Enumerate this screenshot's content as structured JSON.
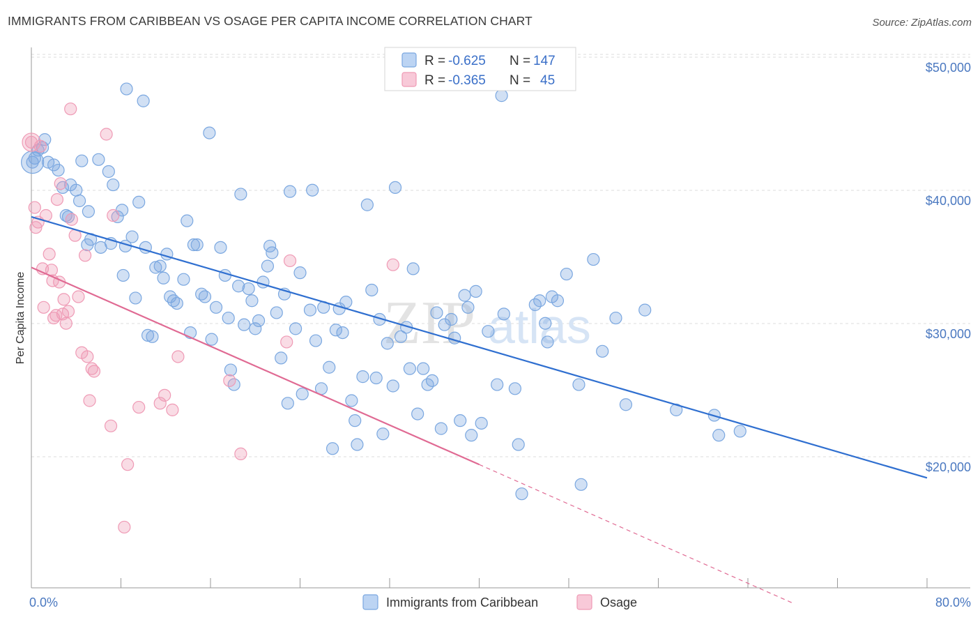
{
  "header": {
    "title": "IMMIGRANTS FROM CARIBBEAN VS OSAGE PER CAPITA INCOME CORRELATION CHART",
    "source": "Source: ZipAtlas.com"
  },
  "watermark": {
    "zip": "ZIP",
    "atlas": "atlas"
  },
  "colors": {
    "blue": "#7aa7e0",
    "blue_line": "#2f6fd0",
    "pink": "#ef9ab5",
    "pink_line": "#e06a93",
    "axis_label": "#4a78c0",
    "grid": "#dcdcdc"
  },
  "legend": {
    "rows": [
      {
        "r_label": "R =",
        "r_value": "-0.625",
        "n_label": "N =",
        "n_value": "147"
      },
      {
        "r_label": "R =",
        "r_value": "-0.365",
        "n_label": "N =",
        "n_value": "45"
      }
    ]
  },
  "chart_data": {
    "type": "scatter",
    "title": "IMMIGRANTS FROM CARIBBEAN VS OSAGE PER CAPITA INCOME CORRELATION CHART",
    "xlabel": "",
    "ylabel": "Per Capita Income",
    "xlim": [
      0,
      80
    ],
    "ylim": [
      10000,
      52000
    ],
    "x_tick_labels": [
      "0.0%",
      "80.0%"
    ],
    "y_ticks": [
      20000,
      30000,
      40000,
      50000
    ],
    "y_tick_labels": [
      "$20,000",
      "$30,000",
      "$40,000",
      "$50,000"
    ],
    "grid": true,
    "legend_position": "top-center",
    "series": [
      {
        "name": "Immigrants from Caribbean",
        "color": "#7aa7e0",
        "r": -0.625,
        "n": 147,
        "trend": {
          "x": [
            0,
            80
          ],
          "y": [
            38800,
            19200
          ],
          "style": "solid"
        },
        "points": [
          [
            0.1,
            42900
          ],
          [
            0.6,
            43800
          ],
          [
            1.0,
            44000
          ],
          [
            1.2,
            44600
          ],
          [
            1.5,
            42900
          ],
          [
            2.0,
            42700
          ],
          [
            2.4,
            42300
          ],
          [
            2.8,
            41000
          ],
          [
            3.1,
            38900
          ],
          [
            3.3,
            38800
          ],
          [
            3.5,
            41200
          ],
          [
            4.0,
            40800
          ],
          [
            4.3,
            40000
          ],
          [
            4.5,
            43000
          ],
          [
            5.1,
            39200
          ],
          [
            5.3,
            37100
          ],
          [
            5.0,
            36700
          ],
          [
            6.0,
            43100
          ],
          [
            6.2,
            36500
          ],
          [
            6.9,
            42200
          ],
          [
            7.1,
            36800
          ],
          [
            7.3,
            41200
          ],
          [
            7.7,
            38800
          ],
          [
            8.1,
            39300
          ],
          [
            8.2,
            34400
          ],
          [
            8.4,
            36600
          ],
          [
            8.5,
            48400
          ],
          [
            9.0,
            37300
          ],
          [
            9.3,
            32700
          ],
          [
            9.6,
            39900
          ],
          [
            10.0,
            47500
          ],
          [
            10.2,
            36500
          ],
          [
            10.4,
            29900
          ],
          [
            10.8,
            29800
          ],
          [
            11.1,
            35000
          ],
          [
            11.5,
            35100
          ],
          [
            11.8,
            34200
          ],
          [
            12.1,
            36000
          ],
          [
            12.4,
            32800
          ],
          [
            12.7,
            32500
          ],
          [
            13.0,
            32300
          ],
          [
            13.6,
            34100
          ],
          [
            13.9,
            38500
          ],
          [
            14.2,
            30100
          ],
          [
            14.5,
            36700
          ],
          [
            14.8,
            36700
          ],
          [
            15.2,
            33000
          ],
          [
            15.5,
            32800
          ],
          [
            15.9,
            45100
          ],
          [
            16.1,
            29600
          ],
          [
            16.5,
            32000
          ],
          [
            16.9,
            36500
          ],
          [
            17.3,
            34400
          ],
          [
            17.6,
            31200
          ],
          [
            17.8,
            27300
          ],
          [
            18.1,
            26200
          ],
          [
            18.5,
            33600
          ],
          [
            18.7,
            40500
          ],
          [
            19.0,
            30700
          ],
          [
            19.4,
            33400
          ],
          [
            19.7,
            32500
          ],
          [
            20.0,
            30400
          ],
          [
            20.3,
            31000
          ],
          [
            20.7,
            33900
          ],
          [
            21.1,
            35100
          ],
          [
            21.3,
            36600
          ],
          [
            21.5,
            36100
          ],
          [
            21.9,
            31600
          ],
          [
            22.3,
            28200
          ],
          [
            22.6,
            33000
          ],
          [
            22.9,
            24800
          ],
          [
            23.1,
            40700
          ],
          [
            23.6,
            30400
          ],
          [
            24.0,
            34600
          ],
          [
            24.2,
            25500
          ],
          [
            24.9,
            31800
          ],
          [
            25.1,
            40800
          ],
          [
            25.4,
            29500
          ],
          [
            25.9,
            25900
          ],
          [
            26.1,
            32000
          ],
          [
            26.6,
            27500
          ],
          [
            26.9,
            21400
          ],
          [
            27.2,
            30300
          ],
          [
            27.5,
            31900
          ],
          [
            27.8,
            30100
          ],
          [
            28.1,
            32400
          ],
          [
            28.6,
            25000
          ],
          [
            28.9,
            23500
          ],
          [
            29.1,
            21700
          ],
          [
            29.6,
            26800
          ],
          [
            30.0,
            39700
          ],
          [
            30.4,
            33300
          ],
          [
            30.8,
            26700
          ],
          [
            31.1,
            31100
          ],
          [
            31.4,
            22500
          ],
          [
            31.8,
            29300
          ],
          [
            32.3,
            26100
          ],
          [
            32.5,
            41000
          ],
          [
            33.0,
            29800
          ],
          [
            33.5,
            30500
          ],
          [
            33.8,
            27400
          ],
          [
            34.1,
            34900
          ],
          [
            34.5,
            24000
          ],
          [
            35.0,
            27400
          ],
          [
            35.4,
            26200
          ],
          [
            35.8,
            26500
          ],
          [
            36.2,
            31600
          ],
          [
            36.6,
            22900
          ],
          [
            36.9,
            30700
          ],
          [
            37.5,
            31100
          ],
          [
            37.8,
            29700
          ],
          [
            38.3,
            23500
          ],
          [
            38.7,
            32900
          ],
          [
            39.0,
            32000
          ],
          [
            39.3,
            22400
          ],
          [
            39.7,
            33200
          ],
          [
            40.2,
            23300
          ],
          [
            40.8,
            30200
          ],
          [
            42.0,
            47900
          ],
          [
            41.6,
            26200
          ],
          [
            42.2,
            31500
          ],
          [
            43.2,
            25900
          ],
          [
            43.5,
            21700
          ],
          [
            43.8,
            18000
          ],
          [
            45.0,
            32200
          ],
          [
            45.4,
            32500
          ],
          [
            45.9,
            30800
          ],
          [
            46.1,
            29400
          ],
          [
            46.5,
            32800
          ],
          [
            47.0,
            32500
          ],
          [
            47.8,
            34500
          ],
          [
            48.9,
            26200
          ],
          [
            49.1,
            18700
          ],
          [
            50.2,
            35600
          ],
          [
            51.0,
            28700
          ],
          [
            52.2,
            31200
          ],
          [
            53.1,
            24700
          ],
          [
            54.8,
            31800
          ],
          [
            57.6,
            24300
          ],
          [
            61.0,
            23900
          ],
          [
            61.4,
            22400
          ],
          [
            63.3,
            22700
          ],
          [
            0.3,
            43200
          ]
        ]
      },
      {
        "name": "Osage",
        "color": "#ef9ab5",
        "r": -0.365,
        "n": 45,
        "trend": {
          "x": [
            0,
            40
          ],
          "y": [
            35000,
            20200
          ],
          "style": "solid",
          "dashed_to": [
            68,
            9800
          ]
        },
        "points": [
          [
            0.0,
            44400
          ],
          [
            0.3,
            39500
          ],
          [
            0.4,
            38000
          ],
          [
            0.6,
            38400
          ],
          [
            0.8,
            44100
          ],
          [
            1.0,
            34900
          ],
          [
            1.1,
            32000
          ],
          [
            1.3,
            38900
          ],
          [
            1.6,
            36000
          ],
          [
            1.8,
            34800
          ],
          [
            1.9,
            34000
          ],
          [
            2.0,
            31200
          ],
          [
            2.2,
            31400
          ],
          [
            2.5,
            33900
          ],
          [
            2.6,
            41300
          ],
          [
            2.8,
            31500
          ],
          [
            2.9,
            32600
          ],
          [
            3.1,
            30800
          ],
          [
            3.3,
            31700
          ],
          [
            3.5,
            46900
          ],
          [
            3.6,
            38600
          ],
          [
            3.9,
            37400
          ],
          [
            4.2,
            32800
          ],
          [
            4.5,
            28600
          ],
          [
            4.8,
            35900
          ],
          [
            5.0,
            28300
          ],
          [
            5.2,
            25000
          ],
          [
            5.4,
            27400
          ],
          [
            5.6,
            27200
          ],
          [
            6.7,
            45000
          ],
          [
            7.1,
            23100
          ],
          [
            7.3,
            38900
          ],
          [
            8.3,
            15500
          ],
          [
            8.6,
            20200
          ],
          [
            9.6,
            24500
          ],
          [
            11.5,
            24800
          ],
          [
            11.9,
            25400
          ],
          [
            12.6,
            24300
          ],
          [
            13.1,
            28300
          ],
          [
            17.7,
            26500
          ],
          [
            18.7,
            21000
          ],
          [
            22.8,
            29400
          ],
          [
            23.1,
            35500
          ],
          [
            32.3,
            35200
          ],
          [
            2.3,
            40100
          ]
        ]
      }
    ]
  },
  "bottom_legend": {
    "items": [
      {
        "label": "Immigrants from Caribbean"
      },
      {
        "label": "Osage"
      }
    ]
  }
}
